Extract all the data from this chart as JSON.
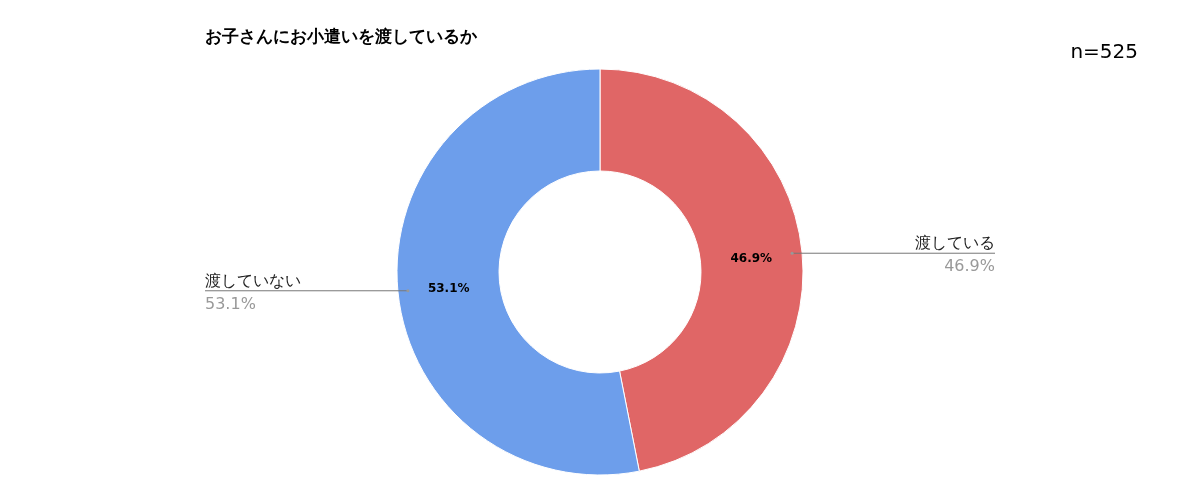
{
  "chart_data": {
    "type": "donut",
    "title": "お子さんにお小遣いを渡しているか",
    "categories": [
      "渡している",
      "渡していない"
    ],
    "values": [
      46.9,
      53.1
    ],
    "colors": [
      "#e06666",
      "#6d9eeb"
    ],
    "value_labels": [
      "46.9%",
      "53.1%"
    ],
    "annotations": [
      "n=525"
    ]
  }
}
